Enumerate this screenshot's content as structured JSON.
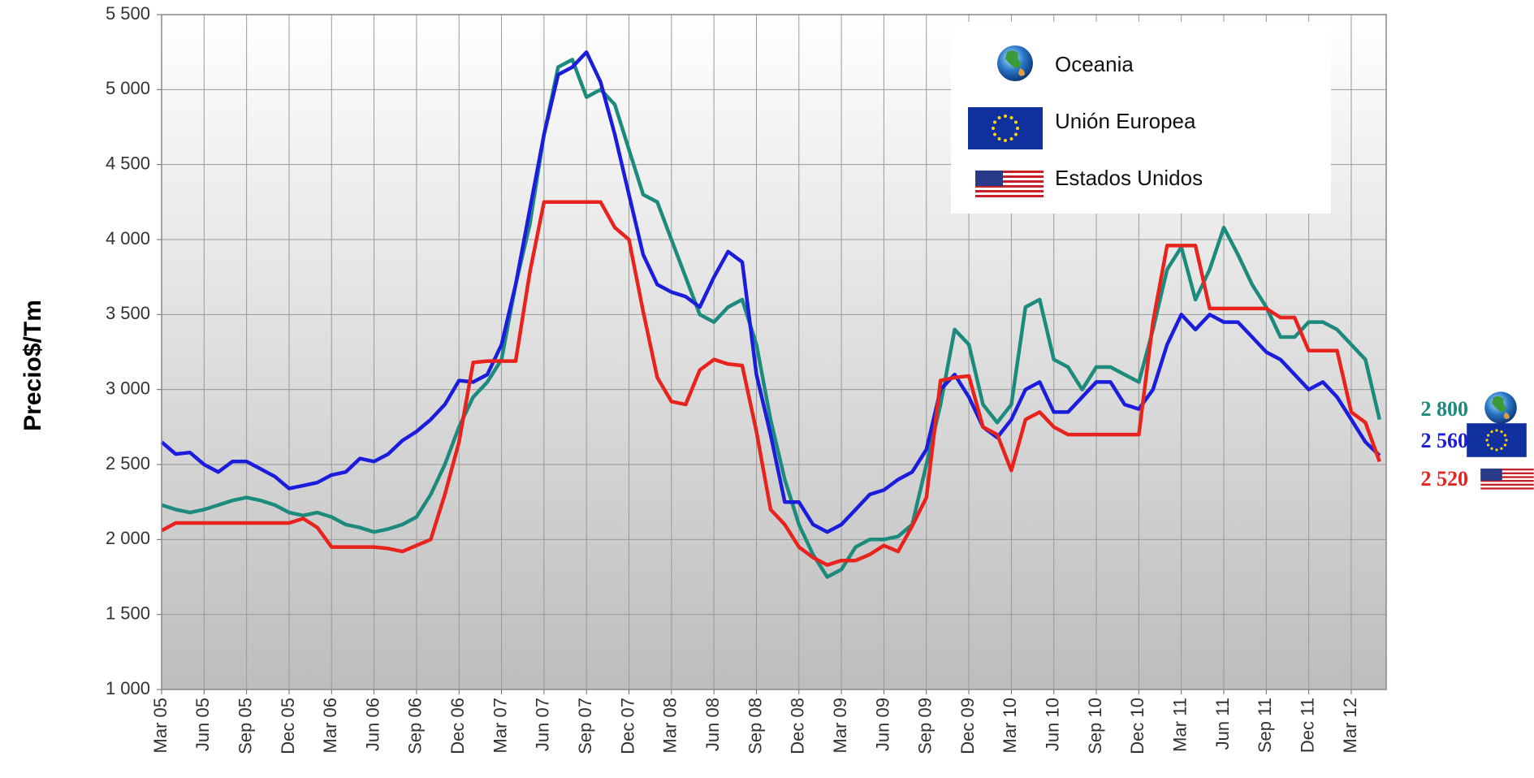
{
  "chart_data": {
    "type": "line",
    "y_label": "Precio$/Tm",
    "categories": [
      "Mar 05",
      null,
      null,
      "Jun 05",
      null,
      null,
      "Sep 05",
      null,
      null,
      "Dec 05",
      null,
      null,
      "Mar 06",
      null,
      null,
      "Jun 06",
      null,
      null,
      "Sep 06",
      null,
      null,
      "Dec 06",
      null,
      null,
      "Mar 07",
      null,
      null,
      "Jun 07",
      null,
      null,
      "Sep 07",
      null,
      null,
      "Dec 07",
      null,
      null,
      "Mar 08",
      null,
      null,
      "Jun 08",
      null,
      null,
      "Sep 08",
      null,
      null,
      "Dec 08",
      null,
      null,
      "Mar 09",
      null,
      null,
      "Jun 09",
      null,
      null,
      "Sep 09",
      null,
      null,
      "Dec 09",
      null,
      null,
      "Mar 10",
      null,
      null,
      "Jun 10",
      null,
      null,
      "Sep 10",
      null,
      null,
      "Dec 10",
      null,
      null,
      "Mar 11",
      null,
      null,
      "Jun 11",
      null,
      null,
      "Sep 11",
      null,
      null,
      "Dec 11",
      null,
      null,
      "Mar 12",
      null,
      null
    ],
    "ylim": [
      1000,
      5500
    ],
    "yticks": [
      {
        "value": 1000,
        "label": "1 000"
      },
      {
        "value": 1500,
        "label": "1 500"
      },
      {
        "value": 2000,
        "label": "2 000"
      },
      {
        "value": 2500,
        "label": "2 500"
      },
      {
        "value": 3000,
        "label": "3 000"
      },
      {
        "value": 3500,
        "label": "3 500"
      },
      {
        "value": 4000,
        "label": "4 000"
      },
      {
        "value": 4500,
        "label": "4 500"
      },
      {
        "value": 5000,
        "label": "5 000"
      },
      {
        "value": 5500,
        "label": "5 500"
      }
    ],
    "grid": true,
    "legend": "upper right",
    "series": [
      {
        "name": "Oceania",
        "color": "#1d8a7e",
        "end_label": "2 800",
        "values": [
          2230,
          2200,
          2180,
          2200,
          2230,
          2260,
          2280,
          2260,
          2230,
          2180,
          2160,
          2180,
          2150,
          2100,
          2080,
          2050,
          2070,
          2100,
          2150,
          2300,
          2500,
          2750,
          2950,
          3050,
          3200,
          3700,
          4100,
          4700,
          5150,
          5200,
          4950,
          5000,
          4900,
          4600,
          4300,
          4250,
          4000,
          3750,
          3500,
          3450,
          3550,
          3600,
          3300,
          2800,
          2400,
          2100,
          1900,
          1750,
          1800,
          1950,
          2000,
          2000,
          2020,
          2100,
          2500,
          2900,
          3400,
          3300,
          2900,
          2780,
          2900,
          3550,
          3600,
          3200,
          3150,
          3000,
          3150,
          3150,
          3100,
          3050,
          3400,
          3800,
          3950,
          3600,
          3800,
          4080,
          3900,
          3700,
          3550,
          3350,
          3350,
          3450,
          3450,
          3400,
          3300,
          3200,
          2800
        ]
      },
      {
        "name": "Unión Europea",
        "color": "#1c1cdc",
        "end_label": "2 560",
        "values": [
          2650,
          2570,
          2580,
          2500,
          2450,
          2520,
          2520,
          2470,
          2420,
          2340,
          2360,
          2380,
          2430,
          2450,
          2540,
          2520,
          2570,
          2660,
          2720,
          2800,
          2900,
          3060,
          3050,
          3100,
          3300,
          3700,
          4200,
          4700,
          5100,
          5150,
          5250,
          5050,
          4700,
          4300,
          3900,
          3700,
          3650,
          3620,
          3550,
          3750,
          3920,
          3850,
          3100,
          2700,
          2250,
          2250,
          2100,
          2050,
          2100,
          2200,
          2300,
          2330,
          2400,
          2450,
          2600,
          3000,
          3100,
          2950,
          2750,
          2680,
          2800,
          3000,
          3050,
          2850,
          2850,
          2950,
          3050,
          3050,
          2900,
          2870,
          3000,
          3300,
          3500,
          3400,
          3500,
          3450,
          3450,
          3350,
          3250,
          3200,
          3100,
          3000,
          3050,
          2950,
          2800,
          2650,
          2560
        ]
      },
      {
        "name": "Estados Unidos",
        "color": "#e8231e",
        "end_label": "2 520",
        "values": [
          2060,
          2110,
          2110,
          2110,
          2110,
          2110,
          2110,
          2110,
          2110,
          2110,
          2140,
          2080,
          1950,
          1950,
          1950,
          1950,
          1940,
          1920,
          1960,
          2000,
          2300,
          2650,
          3180,
          3190,
          3190,
          3190,
          3780,
          4250,
          4250,
          4250,
          4250,
          4250,
          4080,
          4000,
          3520,
          3080,
          2920,
          2900,
          3130,
          3200,
          3170,
          3160,
          2720,
          2200,
          2100,
          1950,
          1880,
          1830,
          1860,
          1860,
          1900,
          1960,
          1920,
          2090,
          2280,
          3060,
          3080,
          3090,
          2750,
          2700,
          2460,
          2800,
          2850,
          2750,
          2700,
          2700,
          2700,
          2700,
          2700,
          2700,
          3450,
          3960,
          3960,
          3960,
          3540,
          3540,
          3540,
          3540,
          3540,
          3480,
          3480,
          3260,
          3260,
          3260,
          2850,
          2780,
          2520
        ]
      }
    ]
  }
}
